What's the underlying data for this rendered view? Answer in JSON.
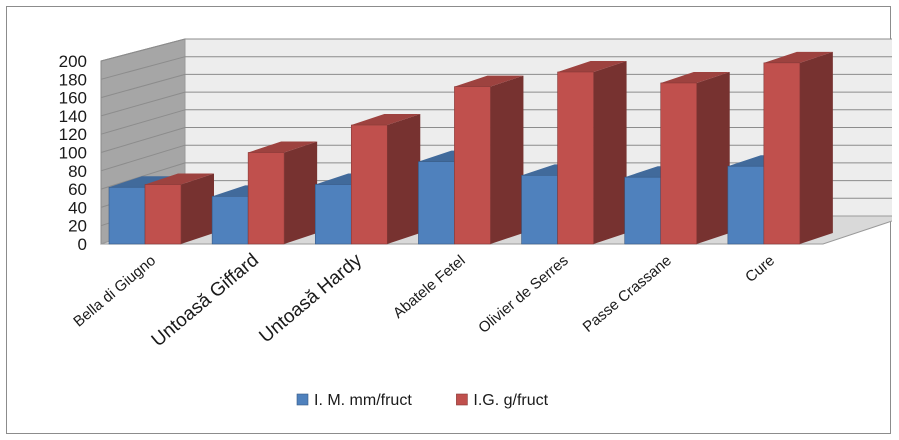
{
  "chart_data": {
    "type": "bar",
    "three_d": true,
    "title": "",
    "xlabel": "",
    "ylabel": "",
    "ylim": [
      0,
      200
    ],
    "yticks": [
      0,
      20,
      40,
      60,
      80,
      100,
      120,
      140,
      160,
      180,
      200
    ],
    "grid": true,
    "legend_position": "bottom",
    "categories": [
      "Bella di Giugno",
      "Untoasă Giffard",
      "Untoasă Hardy",
      "Abatele Fetel",
      "Olivier de Serres",
      "Passe Crassane",
      "Cure"
    ],
    "series": [
      {
        "name": "I. M. mm/fruct",
        "color": "#4f81bd",
        "values": [
          62,
          52,
          65,
          90,
          75,
          73,
          85
        ]
      },
      {
        "name": "I.G. g/fruct",
        "color": "#c0504d",
        "values": [
          65,
          100,
          130,
          172,
          188,
          176,
          198
        ]
      }
    ]
  }
}
